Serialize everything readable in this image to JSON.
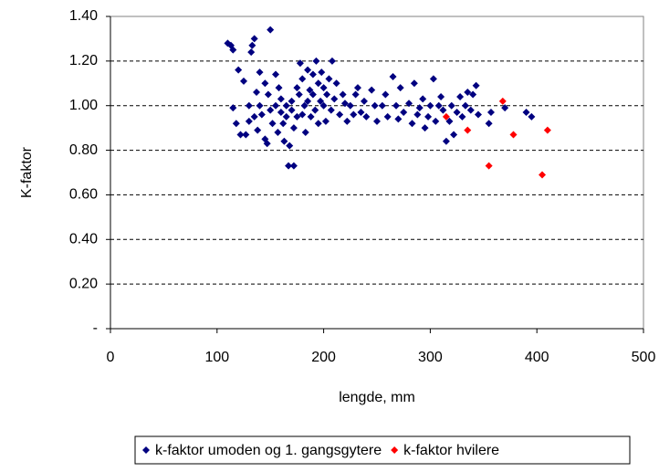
{
  "chart_data": {
    "type": "scatter",
    "xlabel": "lengde, mm",
    "ylabel": "K-faktor",
    "xlim": [
      0,
      500
    ],
    "xticks": [
      0,
      100,
      200,
      300,
      400,
      500
    ],
    "ylim": [
      0,
      1.4
    ],
    "yticks": [
      {
        "value": 0,
        "label": "-"
      },
      {
        "value": 0.2,
        "label": "0.20"
      },
      {
        "value": 0.4,
        "label": "0.40"
      },
      {
        "value": 0.6,
        "label": "0.60"
      },
      {
        "value": 0.8,
        "label": "0.80"
      },
      {
        "value": 1.0,
        "label": "1.00"
      },
      {
        "value": 1.2,
        "label": "1.20"
      },
      {
        "value": 1.4,
        "label": "1.40"
      }
    ],
    "grid": true,
    "legend": "bottom",
    "series": [
      {
        "name": "k-faktor umoden og 1. gangsgytere",
        "color": "#000080",
        "x": [
          110,
          113,
          115,
          115,
          118,
          120,
          122,
          125,
          127,
          130,
          130,
          132,
          133,
          135,
          135,
          137,
          138,
          140,
          140,
          142,
          145,
          145,
          147,
          148,
          150,
          150,
          152,
          155,
          155,
          157,
          158,
          160,
          160,
          162,
          163,
          165,
          165,
          167,
          168,
          170,
          170,
          172,
          172,
          175,
          175,
          177,
          178,
          180,
          180,
          182,
          183,
          185,
          185,
          187,
          188,
          190,
          190,
          192,
          193,
          195,
          195,
          197,
          198,
          200,
          200,
          202,
          203,
          205,
          207,
          208,
          210,
          212,
          215,
          218,
          220,
          222,
          225,
          228,
          230,
          232,
          235,
          238,
          240,
          245,
          248,
          250,
          255,
          258,
          260,
          265,
          268,
          270,
          272,
          275,
          280,
          283,
          285,
          288,
          290,
          293,
          295,
          298,
          300,
          303,
          305,
          308,
          310,
          312,
          315,
          318,
          320,
          322,
          325,
          328,
          330,
          333,
          335,
          338,
          340,
          343,
          345,
          355,
          357,
          370,
          390,
          395
        ],
        "values": [
          1.28,
          1.27,
          1.25,
          0.99,
          0.92,
          1.16,
          0.87,
          1.11,
          0.87,
          1.0,
          0.93,
          1.24,
          1.27,
          1.3,
          0.95,
          1.06,
          0.89,
          1.15,
          1.0,
          0.96,
          0.85,
          1.1,
          0.83,
          1.05,
          1.34,
          0.98,
          0.92,
          1.0,
          1.14,
          0.88,
          1.08,
          0.97,
          1.03,
          0.92,
          0.84,
          0.95,
          1.0,
          0.73,
          0.82,
          1.02,
          0.98,
          0.73,
          0.9,
          1.08,
          0.95,
          1.05,
          1.19,
          0.96,
          1.12,
          1.0,
          0.88,
          1.02,
          1.16,
          1.07,
          0.95,
          1.14,
          1.05,
          0.98,
          1.2,
          1.1,
          0.92,
          1.02,
          1.15,
          1.0,
          1.08,
          0.93,
          1.05,
          1.12,
          0.98,
          1.2,
          1.03,
          1.1,
          0.96,
          1.05,
          1.01,
          0.93,
          1.0,
          0.96,
          1.05,
          1.08,
          0.97,
          1.02,
          0.95,
          1.07,
          1.0,
          0.93,
          1.0,
          1.05,
          0.95,
          1.13,
          1.0,
          0.94,
          1.08,
          0.97,
          1.01,
          0.92,
          1.1,
          0.96,
          0.99,
          1.03,
          0.9,
          0.95,
          1.0,
          1.12,
          0.93,
          1.0,
          1.04,
          0.98,
          0.84,
          0.93,
          1.0,
          0.87,
          0.97,
          1.04,
          0.95,
          1.0,
          1.06,
          0.98,
          1.05,
          1.09,
          0.96,
          0.92,
          0.97,
          0.99,
          0.97,
          0.95
        ]
      },
      {
        "name": "k-faktor hvilere",
        "color": "#ff0000",
        "x": [
          315,
          335,
          355,
          368,
          378,
          405,
          410
        ],
        "values": [
          0.95,
          0.89,
          0.73,
          1.02,
          0.87,
          0.69,
          0.89
        ]
      }
    ]
  }
}
